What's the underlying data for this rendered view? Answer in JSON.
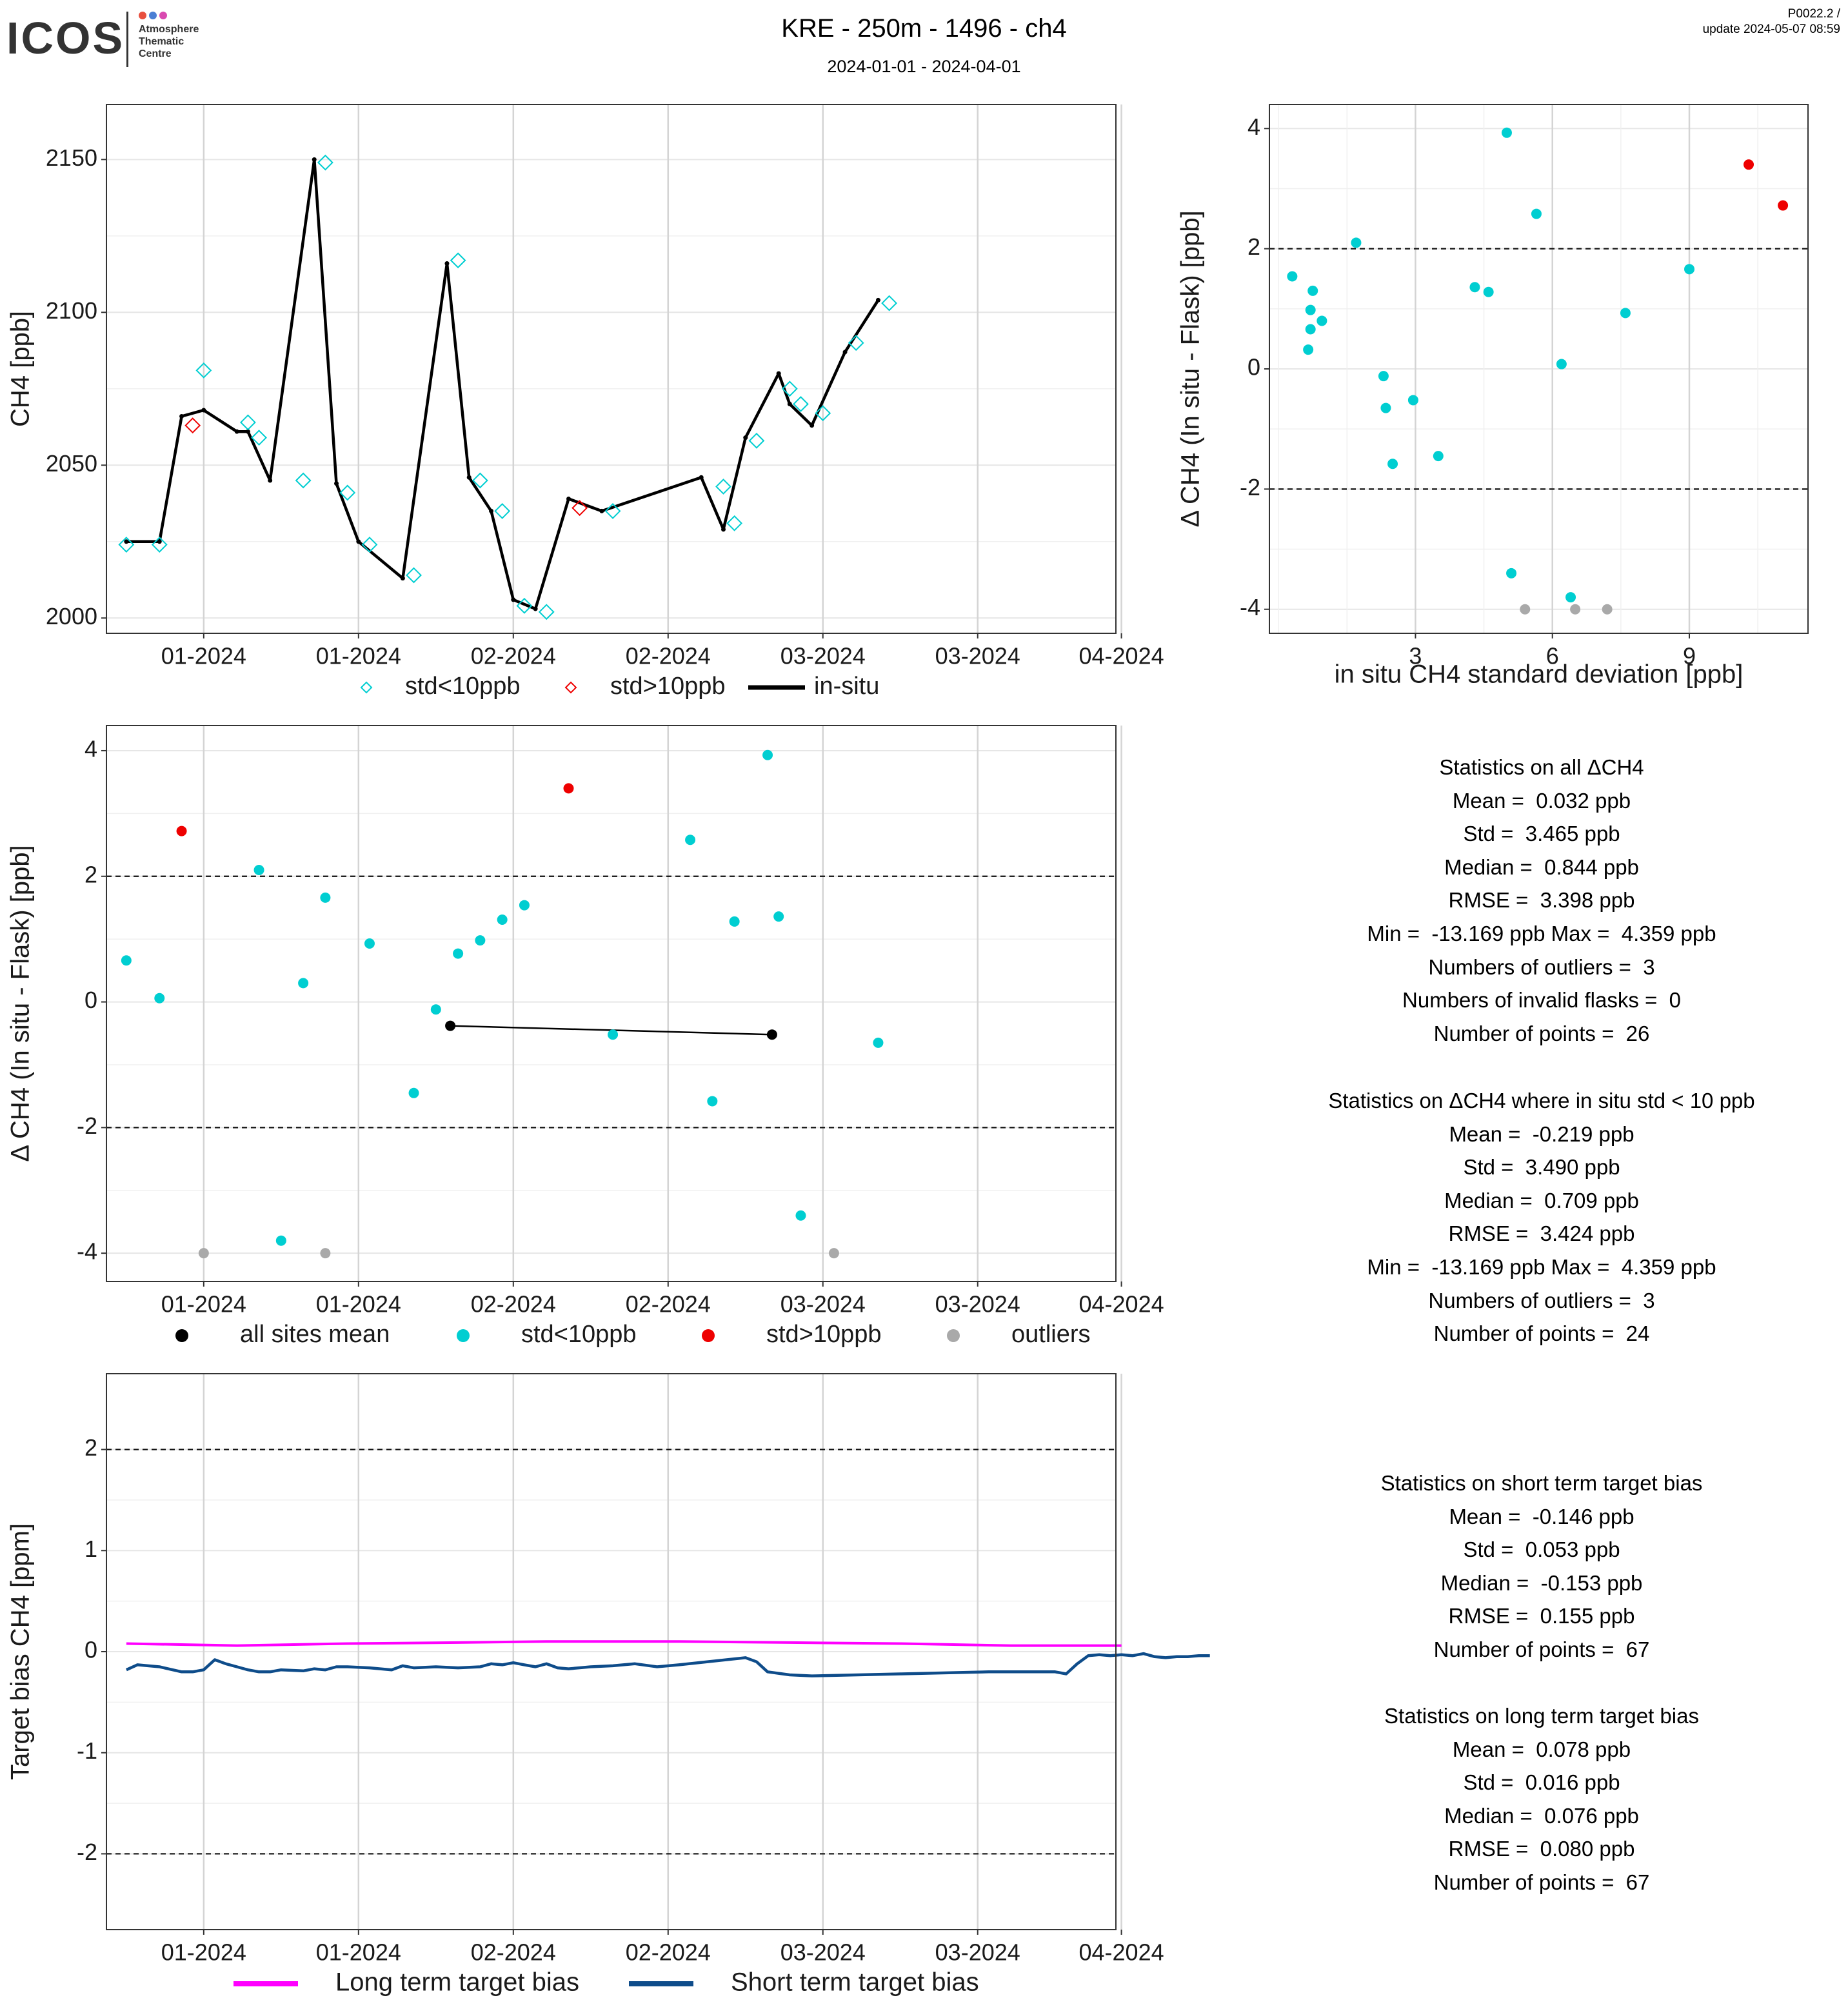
{
  "header": {
    "logo_text": "ICOS",
    "logo_sub": "Atmosphere\nThematic\nCentre",
    "logo_colors": [
      "#e8503f",
      "#4a7fd4",
      "#d94ab0"
    ],
    "title": "KRE - 250m - 1496 - ch4",
    "subtitle": "2024-01-01 - 2024-04-01",
    "version": "P0022.2 /",
    "update": "update  2024-05-07 08:59"
  },
  "colors": {
    "std_lt10": "#00CED1",
    "std_gt10": "#EE0000",
    "outlier": "#A9A9A9",
    "insitu": "#000000",
    "long_term": "#FF00FF",
    "short_term": "#0E4C8A"
  },
  "x_ticks": [
    "01-2024",
    "01-2024",
    "02-2024",
    "02-2024",
    "03-2024",
    "03-2024",
    "04-2024"
  ],
  "chart_data": [
    {
      "id": "timeseries",
      "type": "line",
      "ylabel": "CH4 [ppb]",
      "ylim": [
        1995,
        2168
      ],
      "yticks": [
        2000,
        2050,
        2100,
        2150
      ],
      "x_unit": "days since 2023-12-25",
      "xlim": [
        -1.8,
        89.5
      ],
      "xtick_days": [
        7,
        21,
        35,
        49,
        63,
        77,
        90
      ],
      "legend": [
        "std<10ppb",
        "std>10ppb",
        "in-situ"
      ],
      "insitu": [
        [
          0,
          2025
        ],
        [
          3,
          2025
        ],
        [
          5,
          2066
        ],
        [
          7,
          2068
        ],
        [
          10,
          2061
        ],
        [
          11,
          2061
        ],
        [
          13,
          2045
        ],
        [
          17,
          2150
        ],
        [
          19,
          2044
        ],
        [
          21,
          2025
        ],
        [
          25,
          2013
        ],
        [
          29,
          2116
        ],
        [
          31,
          2046
        ],
        [
          33,
          2035
        ],
        [
          35,
          2006
        ],
        [
          37,
          2003
        ],
        [
          40,
          2039
        ],
        [
          43,
          2035
        ],
        [
          52,
          2046
        ],
        [
          54,
          2029
        ],
        [
          56,
          2059
        ],
        [
          59,
          2080
        ],
        [
          60,
          2070
        ],
        [
          62,
          2063
        ],
        [
          65,
          2087
        ],
        [
          68,
          2104
        ]
      ],
      "flasks_lt10": [
        [
          0,
          2024
        ],
        [
          3,
          2024
        ],
        [
          7,
          2081
        ],
        [
          11,
          2064
        ],
        [
          12,
          2059
        ],
        [
          16,
          2045
        ],
        [
          18,
          2149
        ],
        [
          20,
          2041
        ],
        [
          22,
          2024
        ],
        [
          26,
          2014
        ],
        [
          30,
          2117
        ],
        [
          32,
          2045
        ],
        [
          34,
          2035
        ],
        [
          36,
          2004
        ],
        [
          38,
          2002
        ],
        [
          44,
          2035
        ],
        [
          54,
          2043
        ],
        [
          55,
          2031
        ],
        [
          57,
          2058
        ],
        [
          60,
          2075
        ],
        [
          61,
          2070
        ],
        [
          63,
          2067
        ],
        [
          66,
          2090
        ],
        [
          69,
          2103
        ]
      ],
      "flasks_gt10": [
        [
          6,
          2063
        ],
        [
          41,
          2036
        ]
      ]
    },
    {
      "id": "delta_vs_std",
      "type": "scatter",
      "xlabel": "in situ CH4 standard deviation [ppb]",
      "ylabel": "Δ CH4 (In situ - Flask) [ppb]",
      "xlim": [
        -0.2,
        11.6
      ],
      "ylim": [
        -4.4,
        4.4
      ],
      "xticks": [
        3,
        6,
        9
      ],
      "yticks": [
        -4,
        -2,
        0,
        2,
        4
      ],
      "hlines": [
        2,
        -2
      ],
      "std_lt10": [
        [
          0.3,
          1.54
        ],
        [
          0.75,
          1.3
        ],
        [
          0.7,
          0.98
        ],
        [
          0.7,
          0.66
        ],
        [
          0.65,
          0.32
        ],
        [
          0.95,
          0.8
        ],
        [
          1.7,
          2.1
        ],
        [
          2.3,
          -0.12
        ],
        [
          2.35,
          -0.65
        ],
        [
          2.5,
          -1.58
        ],
        [
          2.95,
          -0.52
        ],
        [
          3.5,
          -1.45
        ],
        [
          4.3,
          1.36
        ],
        [
          4.6,
          1.28
        ],
        [
          5.0,
          3.93
        ],
        [
          5.1,
          -3.4
        ],
        [
          5.65,
          2.58
        ],
        [
          6.2,
          0.08
        ],
        [
          6.4,
          -3.8
        ],
        [
          7.6,
          0.93
        ],
        [
          9.0,
          1.66
        ]
      ],
      "std_gt10": [
        [
          10.3,
          3.4
        ],
        [
          11.05,
          2.72
        ]
      ],
      "outliers": [
        [
          5.4,
          -4
        ],
        [
          6.5,
          -4
        ],
        [
          7.2,
          -4
        ]
      ]
    },
    {
      "id": "delta_timeseries",
      "type": "scatter",
      "ylabel": "Δ CH4 (In situ - Flask) [ppb]",
      "ylim": [
        -4.45,
        4.4
      ],
      "yticks": [
        -4,
        -2,
        0,
        2,
        4
      ],
      "hlines": [
        2,
        -2
      ],
      "legend": [
        "all sites mean",
        "std<10ppb",
        "std>10ppb",
        "outliers"
      ],
      "all_sites_mean": [
        [
          29.3,
          -0.38
        ],
        [
          58.4,
          -0.52
        ]
      ],
      "std_lt10": [
        [
          0,
          0.66
        ],
        [
          3,
          0.06
        ],
        [
          12,
          2.1
        ],
        [
          14,
          -3.8
        ],
        [
          16,
          0.3
        ],
        [
          18,
          1.66
        ],
        [
          22,
          0.93
        ],
        [
          26,
          -1.45
        ],
        [
          28,
          -0.12
        ],
        [
          30,
          0.77
        ],
        [
          32,
          0.98
        ],
        [
          34,
          1.31
        ],
        [
          36,
          1.54
        ],
        [
          44,
          -0.52
        ],
        [
          51,
          2.58
        ],
        [
          53,
          -1.58
        ],
        [
          55,
          1.28
        ],
        [
          58,
          3.93
        ],
        [
          59,
          1.36
        ],
        [
          61,
          -3.4
        ],
        [
          68,
          -0.65
        ]
      ],
      "std_gt10": [
        [
          5,
          2.72
        ],
        [
          40,
          3.4
        ]
      ],
      "outliers": [
        [
          7,
          -4
        ],
        [
          18,
          -4
        ],
        [
          64,
          -4
        ]
      ]
    },
    {
      "id": "target_bias",
      "type": "line",
      "ylabel": "Target bias CH4 [ppm]",
      "ylim": [
        -2.75,
        2.75
      ],
      "yticks": [
        -2,
        -1,
        0,
        1,
        2
      ],
      "hlines": [
        2,
        -2
      ],
      "legend": [
        "Long term target bias",
        "Short term target bias"
      ],
      "long_term": [
        [
          0,
          0.08
        ],
        [
          10,
          0.06
        ],
        [
          20,
          0.08
        ],
        [
          30,
          0.09
        ],
        [
          38,
          0.1
        ],
        [
          50,
          0.1
        ],
        [
          60,
          0.09
        ],
        [
          70,
          0.08
        ],
        [
          80,
          0.06
        ],
        [
          90,
          0.06
        ]
      ],
      "short_term": [
        [
          0,
          -0.18
        ],
        [
          1,
          -0.13
        ],
        [
          3,
          -0.15
        ],
        [
          5,
          -0.2
        ],
        [
          6,
          -0.2
        ],
        [
          7,
          -0.18
        ],
        [
          8,
          -0.08
        ],
        [
          9,
          -0.12
        ],
        [
          10,
          -0.15
        ],
        [
          11,
          -0.18
        ],
        [
          12,
          -0.2
        ],
        [
          13,
          -0.2
        ],
        [
          14,
          -0.18
        ],
        [
          16,
          -0.19
        ],
        [
          17,
          -0.17
        ],
        [
          18,
          -0.18
        ],
        [
          19,
          -0.15
        ],
        [
          20,
          -0.15
        ],
        [
          22,
          -0.16
        ],
        [
          24,
          -0.18
        ],
        [
          25,
          -0.14
        ],
        [
          26,
          -0.16
        ],
        [
          28,
          -0.15
        ],
        [
          30,
          -0.16
        ],
        [
          32,
          -0.15
        ],
        [
          33,
          -0.12
        ],
        [
          34,
          -0.13
        ],
        [
          35,
          -0.11
        ],
        [
          36,
          -0.13
        ],
        [
          37,
          -0.15
        ],
        [
          38,
          -0.12
        ],
        [
          39,
          -0.16
        ],
        [
          40,
          -0.17
        ],
        [
          42,
          -0.15
        ],
        [
          44,
          -0.14
        ],
        [
          46,
          -0.12
        ],
        [
          48,
          -0.15
        ],
        [
          50,
          -0.13
        ],
        [
          56,
          -0.06
        ],
        [
          57,
          -0.1
        ],
        [
          58,
          -0.2
        ],
        [
          60,
          -0.23
        ],
        [
          62,
          -0.24
        ],
        [
          70,
          -0.22
        ],
        [
          78,
          -0.2
        ],
        [
          83,
          -0.2
        ],
        [
          84,
          -0.2
        ],
        [
          85,
          -0.22
        ],
        [
          86,
          -0.12
        ],
        [
          87,
          -0.04
        ],
        [
          88,
          -0.03
        ],
        [
          89,
          -0.04
        ],
        [
          90,
          -0.03
        ],
        [
          91,
          -0.04
        ],
        [
          92,
          -0.02
        ],
        [
          93,
          -0.05
        ],
        [
          94,
          -0.06
        ],
        [
          95,
          -0.05
        ],
        [
          96,
          -0.05
        ],
        [
          97,
          -0.04
        ],
        [
          98,
          -0.04
        ]
      ]
    }
  ],
  "stats": {
    "all": [
      "Statistics on all ΔCH4",
      "Mean =  0.032 ppb",
      "Std =  3.465 ppb",
      "Median =  0.844 ppb",
      "RMSE =  3.398 ppb",
      "Min =  -13.169 ppb Max =  4.359 ppb",
      "Numbers of outliers =  3",
      "Numbers of invalid flasks =  0",
      "Number of points =  26"
    ],
    "std_lt10": [
      "Statistics on ΔCH4 where in situ std < 10 ppb",
      "Mean =  -0.219 ppb",
      "Std =  3.490 ppb",
      "Median =  0.709 ppb",
      "RMSE =  3.424 ppb",
      "Min =  -13.169 ppb Max =  4.359 ppb",
      "Numbers of outliers =  3",
      "Number of points =  24"
    ],
    "short_term": [
      "Statistics on short term target bias",
      "Mean =  -0.146 ppb",
      "Std =  0.053 ppb",
      "Median =  -0.153 ppb",
      "RMSE =  0.155 ppb",
      "Number of points =  67"
    ],
    "long_term": [
      "Statistics on long term target bias",
      "Mean =  0.078 ppb",
      "Std =  0.016 ppb",
      "Median =  0.076 ppb",
      "RMSE =  0.080 ppb",
      "Number of points =  67"
    ]
  }
}
